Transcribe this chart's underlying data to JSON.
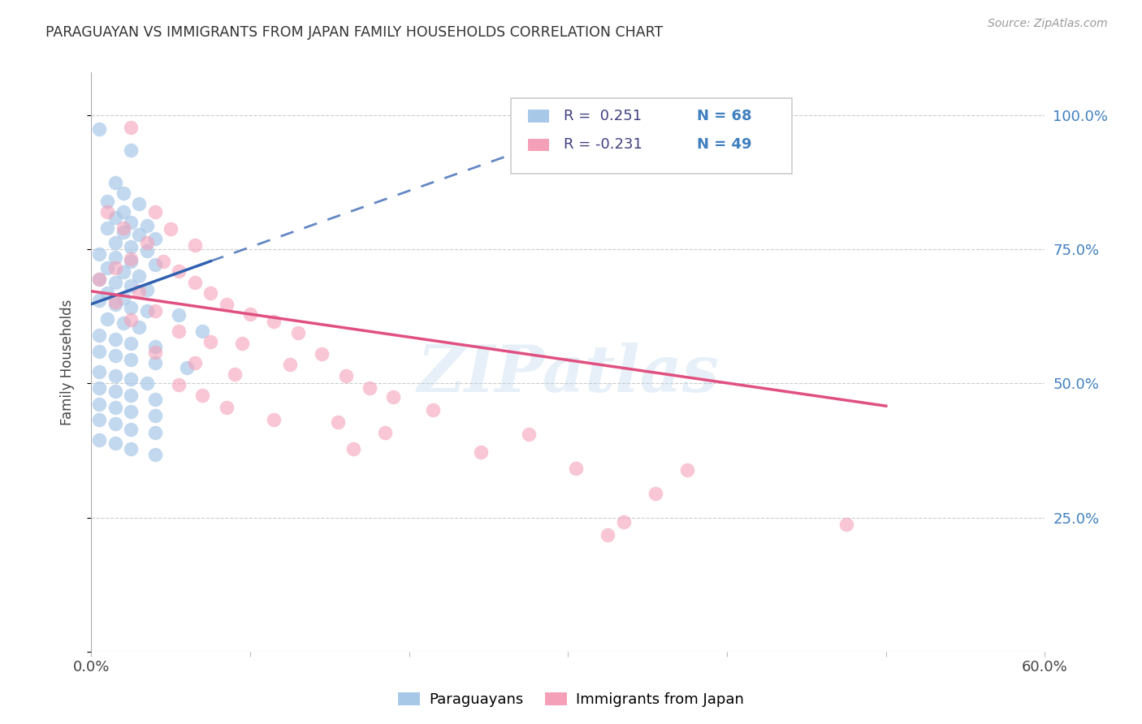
{
  "title": "PARAGUAYAN VS IMMIGRANTS FROM JAPAN FAMILY HOUSEHOLDS CORRELATION CHART",
  "source": "Source: ZipAtlas.com",
  "ylabel": "Family Households",
  "xlim": [
    0.0,
    0.6
  ],
  "ylim": [
    0.0,
    1.08
  ],
  "right_yticks": [
    0.25,
    0.5,
    0.75,
    1.0
  ],
  "right_ytick_labels": [
    "25.0%",
    "50.0%",
    "75.0%",
    "100.0%"
  ],
  "xtick_labels": [
    "0.0%",
    "",
    "",
    "",
    "",
    "",
    "60.0%"
  ],
  "legend_r1": "R =  0.251",
  "legend_n1": "N = 68",
  "legend_r2": "R = -0.231",
  "legend_n2": "N = 49",
  "blue_color": "#a8c8e8",
  "pink_color": "#f4a0b8",
  "blue_line_color": "#3060b0",
  "pink_line_color": "#e05080",
  "right_axis_color": "#4080c0",
  "legend_r_color": "#404080",
  "legend_n_color": "#4080c0",
  "watermark": "ZIPatlas",
  "blue_scatter": [
    [
      0.005,
      0.975
    ],
    [
      0.025,
      0.935
    ],
    [
      0.015,
      0.875
    ],
    [
      0.02,
      0.855
    ],
    [
      0.01,
      0.84
    ],
    [
      0.03,
      0.835
    ],
    [
      0.02,
      0.82
    ],
    [
      0.015,
      0.81
    ],
    [
      0.025,
      0.8
    ],
    [
      0.035,
      0.795
    ],
    [
      0.01,
      0.79
    ],
    [
      0.02,
      0.782
    ],
    [
      0.03,
      0.778
    ],
    [
      0.04,
      0.77
    ],
    [
      0.015,
      0.762
    ],
    [
      0.025,
      0.755
    ],
    [
      0.035,
      0.748
    ],
    [
      0.005,
      0.742
    ],
    [
      0.015,
      0.735
    ],
    [
      0.025,
      0.728
    ],
    [
      0.04,
      0.722
    ],
    [
      0.01,
      0.715
    ],
    [
      0.02,
      0.708
    ],
    [
      0.03,
      0.7
    ],
    [
      0.005,
      0.695
    ],
    [
      0.015,
      0.688
    ],
    [
      0.025,
      0.682
    ],
    [
      0.035,
      0.675
    ],
    [
      0.01,
      0.668
    ],
    [
      0.02,
      0.66
    ],
    [
      0.005,
      0.655
    ],
    [
      0.015,
      0.648
    ],
    [
      0.025,
      0.642
    ],
    [
      0.035,
      0.635
    ],
    [
      0.055,
      0.628
    ],
    [
      0.01,
      0.62
    ],
    [
      0.02,
      0.612
    ],
    [
      0.03,
      0.605
    ],
    [
      0.07,
      0.598
    ],
    [
      0.005,
      0.59
    ],
    [
      0.015,
      0.582
    ],
    [
      0.025,
      0.575
    ],
    [
      0.04,
      0.568
    ],
    [
      0.005,
      0.56
    ],
    [
      0.015,
      0.552
    ],
    [
      0.025,
      0.545
    ],
    [
      0.04,
      0.538
    ],
    [
      0.06,
      0.53
    ],
    [
      0.005,
      0.522
    ],
    [
      0.015,
      0.515
    ],
    [
      0.025,
      0.508
    ],
    [
      0.035,
      0.5
    ],
    [
      0.005,
      0.492
    ],
    [
      0.015,
      0.485
    ],
    [
      0.025,
      0.478
    ],
    [
      0.04,
      0.47
    ],
    [
      0.005,
      0.462
    ],
    [
      0.015,
      0.455
    ],
    [
      0.025,
      0.448
    ],
    [
      0.04,
      0.44
    ],
    [
      0.005,
      0.432
    ],
    [
      0.015,
      0.425
    ],
    [
      0.025,
      0.415
    ],
    [
      0.04,
      0.408
    ],
    [
      0.005,
      0.395
    ],
    [
      0.015,
      0.388
    ],
    [
      0.025,
      0.378
    ],
    [
      0.04,
      0.368
    ]
  ],
  "pink_scatter": [
    [
      0.025,
      0.978
    ],
    [
      0.01,
      0.82
    ],
    [
      0.04,
      0.82
    ],
    [
      0.02,
      0.79
    ],
    [
      0.05,
      0.788
    ],
    [
      0.035,
      0.762
    ],
    [
      0.065,
      0.758
    ],
    [
      0.025,
      0.732
    ],
    [
      0.045,
      0.728
    ],
    [
      0.015,
      0.715
    ],
    [
      0.055,
      0.71
    ],
    [
      0.005,
      0.695
    ],
    [
      0.065,
      0.688
    ],
    [
      0.03,
      0.672
    ],
    [
      0.075,
      0.668
    ],
    [
      0.015,
      0.652
    ],
    [
      0.085,
      0.648
    ],
    [
      0.04,
      0.635
    ],
    [
      0.1,
      0.63
    ],
    [
      0.025,
      0.618
    ],
    [
      0.115,
      0.615
    ],
    [
      0.055,
      0.598
    ],
    [
      0.13,
      0.595
    ],
    [
      0.075,
      0.578
    ],
    [
      0.095,
      0.575
    ],
    [
      0.04,
      0.558
    ],
    [
      0.145,
      0.555
    ],
    [
      0.065,
      0.538
    ],
    [
      0.125,
      0.535
    ],
    [
      0.09,
      0.518
    ],
    [
      0.16,
      0.515
    ],
    [
      0.055,
      0.498
    ],
    [
      0.175,
      0.492
    ],
    [
      0.07,
      0.478
    ],
    [
      0.19,
      0.475
    ],
    [
      0.085,
      0.455
    ],
    [
      0.215,
      0.45
    ],
    [
      0.115,
      0.432
    ],
    [
      0.155,
      0.428
    ],
    [
      0.185,
      0.408
    ],
    [
      0.275,
      0.405
    ],
    [
      0.165,
      0.378
    ],
    [
      0.245,
      0.372
    ],
    [
      0.305,
      0.342
    ],
    [
      0.375,
      0.338
    ],
    [
      0.355,
      0.295
    ],
    [
      0.335,
      0.242
    ],
    [
      0.475,
      0.238
    ],
    [
      0.325,
      0.218
    ]
  ],
  "blue_trendline_solid": [
    [
      0.0,
      0.648
    ],
    [
      0.075,
      0.728
    ]
  ],
  "blue_trendline_dashed": [
    [
      0.075,
      0.728
    ],
    [
      0.31,
      0.975
    ]
  ],
  "pink_trendline": [
    [
      0.0,
      0.672
    ],
    [
      0.5,
      0.458
    ]
  ]
}
